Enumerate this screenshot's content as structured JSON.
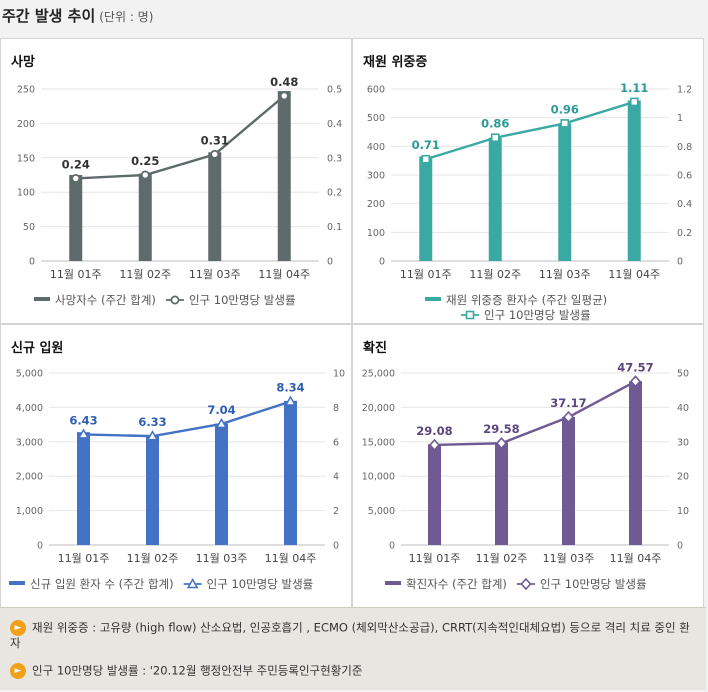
{
  "header": {
    "title": "주간 발생 추이",
    "unit": "(단위 : 명)"
  },
  "notes": [
    {
      "icon": "speaker-icon",
      "text": "재원 위중증 : 고유량 (high flow) 산소요법, 인공호흡기 , ECMO (체외막산소공급), CRRT(지속적인대체요법) 등으로 격리 치료 중인 환자"
    },
    {
      "icon": "speaker-icon",
      "text": "인구 10만명당 발생률 : '20.12월 행정안전부 주민등록인구현황기준"
    }
  ],
  "chart_data": [
    {
      "id": "deaths",
      "type": "bar",
      "title": "사망",
      "categories": [
        "11월 01주",
        "11월 02주",
        "11월 03주",
        "11월 04주"
      ],
      "ylim": [
        0,
        250
      ],
      "yticks": [
        "0",
        "50",
        "100",
        "150",
        "200",
        "250"
      ],
      "y2lim": [
        0,
        0.5
      ],
      "y2ticks": [
        "0",
        "0.1",
        "0.2",
        "0.3",
        "0.4",
        "0.5"
      ],
      "bar_series": {
        "name": "사망자수 (주간 합계)",
        "values": [
          125,
          127,
          158,
          247
        ],
        "color": "#5f6a6a"
      },
      "line_series": {
        "name": "인구 10만명당 발생률",
        "values": [
          0.24,
          0.25,
          0.31,
          0.48
        ],
        "labels": [
          "0.24",
          "0.25",
          "0.31",
          "0.48"
        ],
        "color": "#5f6a6a",
        "label_color": "#333333",
        "marker": "circle"
      },
      "grid": true,
      "legend": "bottom"
    },
    {
      "id": "critical",
      "type": "bar",
      "title": "재원 위중증",
      "categories": [
        "11월 01주",
        "11월 02주",
        "11월 03주",
        "11월 04주"
      ],
      "ylim": [
        0,
        600
      ],
      "yticks": [
        "0",
        "100",
        "200",
        "300",
        "400",
        "500",
        "600"
      ],
      "y2lim": [
        0,
        1.2
      ],
      "y2ticks": [
        "0",
        "0.2",
        "0.4",
        "0.6",
        "0.8",
        "1",
        "1.2"
      ],
      "bar_series": {
        "name": "재원 위중증 환자수 (주간 일평균)",
        "values": [
          365,
          430,
          480,
          560
        ],
        "color": "#3aa9a4"
      },
      "line_series": {
        "name": "인구 10만명당 발생률",
        "values": [
          0.71,
          0.86,
          0.96,
          1.11
        ],
        "labels": [
          "0.71",
          "0.86",
          "0.96",
          "1.11"
        ],
        "color": "#3aa9a4",
        "label_color": "#2a9a95",
        "marker": "square"
      },
      "grid": true,
      "legend": "bottom"
    },
    {
      "id": "admission",
      "type": "bar",
      "title": "신규 입원",
      "categories": [
        "11월 01주",
        "11월 02주",
        "11월 03주",
        "11월 04주"
      ],
      "ylim": [
        0,
        5000
      ],
      "yticks": [
        "0",
        "1,000",
        "2,000",
        "3,000",
        "4,000",
        "5,000"
      ],
      "y2lim": [
        0,
        10
      ],
      "y2ticks": [
        "0",
        "2",
        "4",
        "6",
        "8",
        "10"
      ],
      "bar_series": {
        "name": "신규 입원 환자 수 (주간 합계)",
        "values": [
          3280,
          3180,
          3530,
          4190
        ],
        "color": "#4472c4"
      },
      "line_series": {
        "name": "인구 10만명당 발생률",
        "values": [
          6.43,
          6.33,
          7.04,
          8.34
        ],
        "labels": [
          "6.43",
          "6.33",
          "7.04",
          "8.34"
        ],
        "color": "#4472c4",
        "label_color": "#2f5fb0",
        "marker": "triangle"
      },
      "grid": true,
      "legend": "bottom"
    },
    {
      "id": "confirmed",
      "type": "bar",
      "title": "확진",
      "categories": [
        "11월 01주",
        "11월 02주",
        "11월 03주",
        "11월 04주"
      ],
      "ylim": [
        0,
        25000
      ],
      "yticks": [
        "0",
        "5,000",
        "10,000",
        "15,000",
        "20,000",
        "25,000"
      ],
      "y2lim": [
        0,
        50
      ],
      "y2ticks": [
        "0",
        "10",
        "20",
        "30",
        "40",
        "50"
      ],
      "bar_series": {
        "name": "확진자수 (주간 합계)",
        "values": [
          14650,
          14900,
          18600,
          23800
        ],
        "color": "#6f5a94"
      },
      "line_series": {
        "name": "인구 10만명당 발생률",
        "values": [
          29.08,
          29.58,
          37.17,
          47.57
        ],
        "labels": [
          "29.08",
          "29.58",
          "37.17",
          "47.57"
        ],
        "color": "#6f5a94",
        "label_color": "#5a4680",
        "marker": "diamond"
      },
      "grid": true,
      "legend": "bottom"
    }
  ]
}
